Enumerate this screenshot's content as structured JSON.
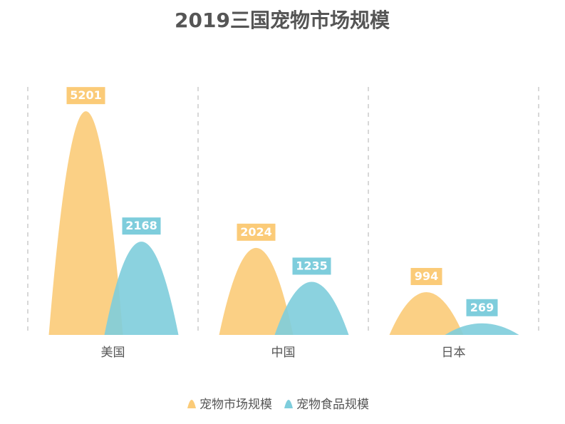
{
  "chart_data": {
    "type": "bar",
    "shape": "mountain",
    "title": "2019三国宠物市场规模",
    "categories": [
      "美国",
      "中国",
      "日本"
    ],
    "series": [
      {
        "name": "宠物市场规模",
        "color": "#FBCB78",
        "values": [
          5201,
          2024,
          994
        ]
      },
      {
        "name": "宠物食品规模",
        "color": "#7ECDDC",
        "values": [
          2168,
          1235,
          269
        ]
      }
    ],
    "ylim": [
      0,
      5800
    ],
    "grid": "vertical-dashed",
    "legend": "bottom-center"
  }
}
